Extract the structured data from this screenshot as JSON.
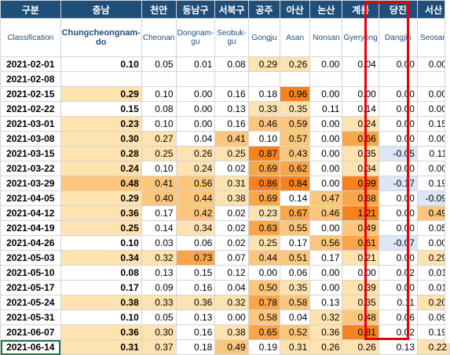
{
  "header": {
    "cols_ko": [
      "구분",
      "충남",
      "천안",
      "동남구",
      "서북구",
      "공주",
      "아산",
      "논산",
      "계룡",
      "당진",
      "서산"
    ],
    "cols_en": [
      "Classification",
      "Chungcheongnam-do",
      "Cheonan",
      "Dongnam-gu",
      "Seobuk-gu",
      "Gongju",
      "Asan",
      "Nonsan",
      "Gyeryong",
      "Dangjin",
      "Seosan"
    ]
  },
  "colors": {
    "header_bg": "#1f4e79",
    "header_text": "#ffffff",
    "highlight_border": "#e8000b",
    "selection": "#217346"
  },
  "rows": [
    {
      "date": "2021-02-01",
      "v": [
        "0.10",
        "0.05",
        "0.01",
        "0.08",
        "0.29",
        "0.26",
        "0.00",
        "0.04",
        "0.00",
        "0.00"
      ]
    },
    {
      "date": "2021-02-08",
      "v": [
        "",
        "",
        "",
        "",
        "",
        "",
        "",
        "",
        "",
        ""
      ]
    },
    {
      "date": "2021-02-15",
      "v": [
        "0.29",
        "0.10",
        "0.00",
        "0.16",
        "0.18",
        "0.96",
        "0.00",
        "0.00",
        "0.00",
        "0.00"
      ]
    },
    {
      "date": "2021-02-22",
      "v": [
        "0.15",
        "0.08",
        "0.00",
        "0.13",
        "0.33",
        "0.35",
        "0.11",
        "0.14",
        "0.00",
        "0.00"
      ]
    },
    {
      "date": "2021-03-01",
      "v": [
        "0.23",
        "0.10",
        "0.00",
        "0.16",
        "0.46",
        "0.59",
        "0.00",
        "0.24",
        "0.00",
        "0.15"
      ]
    },
    {
      "date": "2021-03-08",
      "v": [
        "0.30",
        "0.27",
        "0.04",
        "0.41",
        "0.10",
        "0.57",
        "0.00",
        "0.66",
        "0.00",
        "0.00"
      ]
    },
    {
      "date": "2021-03-15",
      "v": [
        "0.28",
        "0.25",
        "0.26",
        "0.25",
        "0.87",
        "0.43",
        "0.00",
        "0.35",
        "-0.05",
        "0.11"
      ]
    },
    {
      "date": "2021-03-22",
      "v": [
        "0.24",
        "0.10",
        "0.24",
        "0.02",
        "0.69",
        "0.62",
        "0.00",
        "0.34",
        "0.00",
        "0.00"
      ]
    },
    {
      "date": "2021-03-29",
      "v": [
        "0.48",
        "0.41",
        "0.56",
        "0.31",
        "0.86",
        "0.84",
        "0.00",
        "0.99",
        "-0.17",
        "0.19"
      ]
    },
    {
      "date": "2021-04-05",
      "v": [
        "0.29",
        "0.40",
        "0.44",
        "0.38",
        "0.69",
        "0.14",
        "0.47",
        "0.68",
        "0.00",
        "-0.09"
      ]
    },
    {
      "date": "2021-04-12",
      "v": [
        "0.36",
        "0.17",
        "0.42",
        "0.02",
        "0.23",
        "0.67",
        "0.46",
        "1.21",
        "0.00",
        "0.49"
      ]
    },
    {
      "date": "2021-04-19",
      "v": [
        "0.25",
        "0.14",
        "0.34",
        "0.02",
        "0.63",
        "0.55",
        "0.00",
        "0.49",
        "0.00",
        "0.05"
      ]
    },
    {
      "date": "2021-04-26",
      "v": [
        "0.10",
        "0.03",
        "0.06",
        "0.02",
        "0.25",
        "0.17",
        "0.56",
        "0.61",
        "-0.07",
        "0.00"
      ]
    },
    {
      "date": "2021-05-03",
      "v": [
        "0.34",
        "0.32",
        "0.73",
        "0.07",
        "0.44",
        "0.51",
        "0.17",
        "0.21",
        "0.00",
        "0.29"
      ]
    },
    {
      "date": "2021-05-10",
      "v": [
        "0.08",
        "0.13",
        "0.15",
        "0.12",
        "0.00",
        "0.06",
        "0.00",
        "0.00",
        "0.02",
        "0.01"
      ]
    },
    {
      "date": "2021-05-17",
      "v": [
        "0.17",
        "0.09",
        "0.16",
        "0.04",
        "0.50",
        "0.35",
        "0.00",
        "0.39",
        "0.00",
        "0.01"
      ]
    },
    {
      "date": "2021-05-24",
      "v": [
        "0.38",
        "0.33",
        "0.36",
        "0.32",
        "0.78",
        "0.58",
        "0.13",
        "0.35",
        "0.11",
        "0.20"
      ]
    },
    {
      "date": "2021-05-31",
      "v": [
        "0.10",
        "0.05",
        "0.13",
        "0.00",
        "0.58",
        "0.04",
        "0.32",
        "0.48",
        "0.06",
        "0.09"
      ]
    },
    {
      "date": "2021-06-07",
      "v": [
        "0.36",
        "0.30",
        "0.16",
        "0.38",
        "0.65",
        "0.52",
        "0.36",
        "0.81",
        "0.02",
        "0.19"
      ]
    },
    {
      "date": "2021-06-14",
      "v": [
        "0.31",
        "0.37",
        "0.18",
        "0.49",
        "0.19",
        "0.31",
        "0.26",
        "0.26",
        "0.13",
        "0.22"
      ]
    }
  ]
}
